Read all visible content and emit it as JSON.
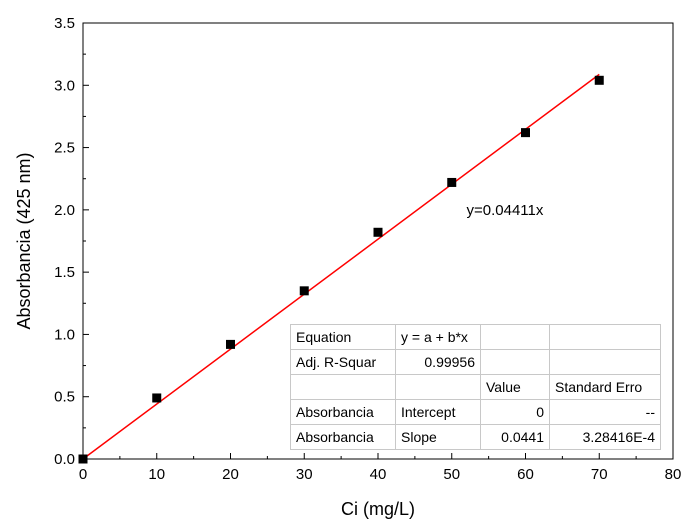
{
  "chart_data": {
    "type": "scatter",
    "xlabel": "Ci (mg/L)",
    "ylabel": "Absorbancia (425 nm)",
    "xlim": [
      0,
      80
    ],
    "ylim": [
      0,
      3.5
    ],
    "x_ticks": [
      "0",
      "10",
      "20",
      "30",
      "40",
      "50",
      "60",
      "70",
      "80"
    ],
    "y_ticks": [
      "0.0",
      "0.5",
      "1.0",
      "1.5",
      "2.0",
      "2.5",
      "3.0",
      "3.5"
    ],
    "grid": false,
    "series": [
      {
        "type": "scatter",
        "x": [
          0,
          10,
          20,
          30,
          40,
          50,
          60,
          70
        ],
        "y": [
          0,
          0.49,
          0.92,
          1.35,
          1.82,
          2.22,
          2.62,
          3.04
        ],
        "color": "#000000"
      }
    ],
    "fit_line": {
      "slope": 0.04411,
      "x_range": [
        0,
        70
      ],
      "color": "#ff0000"
    },
    "annotation": {
      "text": "y=0.04411x",
      "x": 52,
      "y": 2.0
    }
  },
  "table": {
    "rows": [
      [
        "Equation",
        "y = a + b*x",
        "",
        ""
      ],
      [
        "Adj. R-Squar",
        "0.99956",
        "",
        ""
      ],
      [
        "",
        "",
        "Value",
        "Standard Erro"
      ],
      [
        "Absorbancia",
        "Intercept",
        "0",
        "--"
      ],
      [
        "Absorbancia",
        "Slope",
        "0.0441",
        "3.28416E-4"
      ]
    ]
  }
}
